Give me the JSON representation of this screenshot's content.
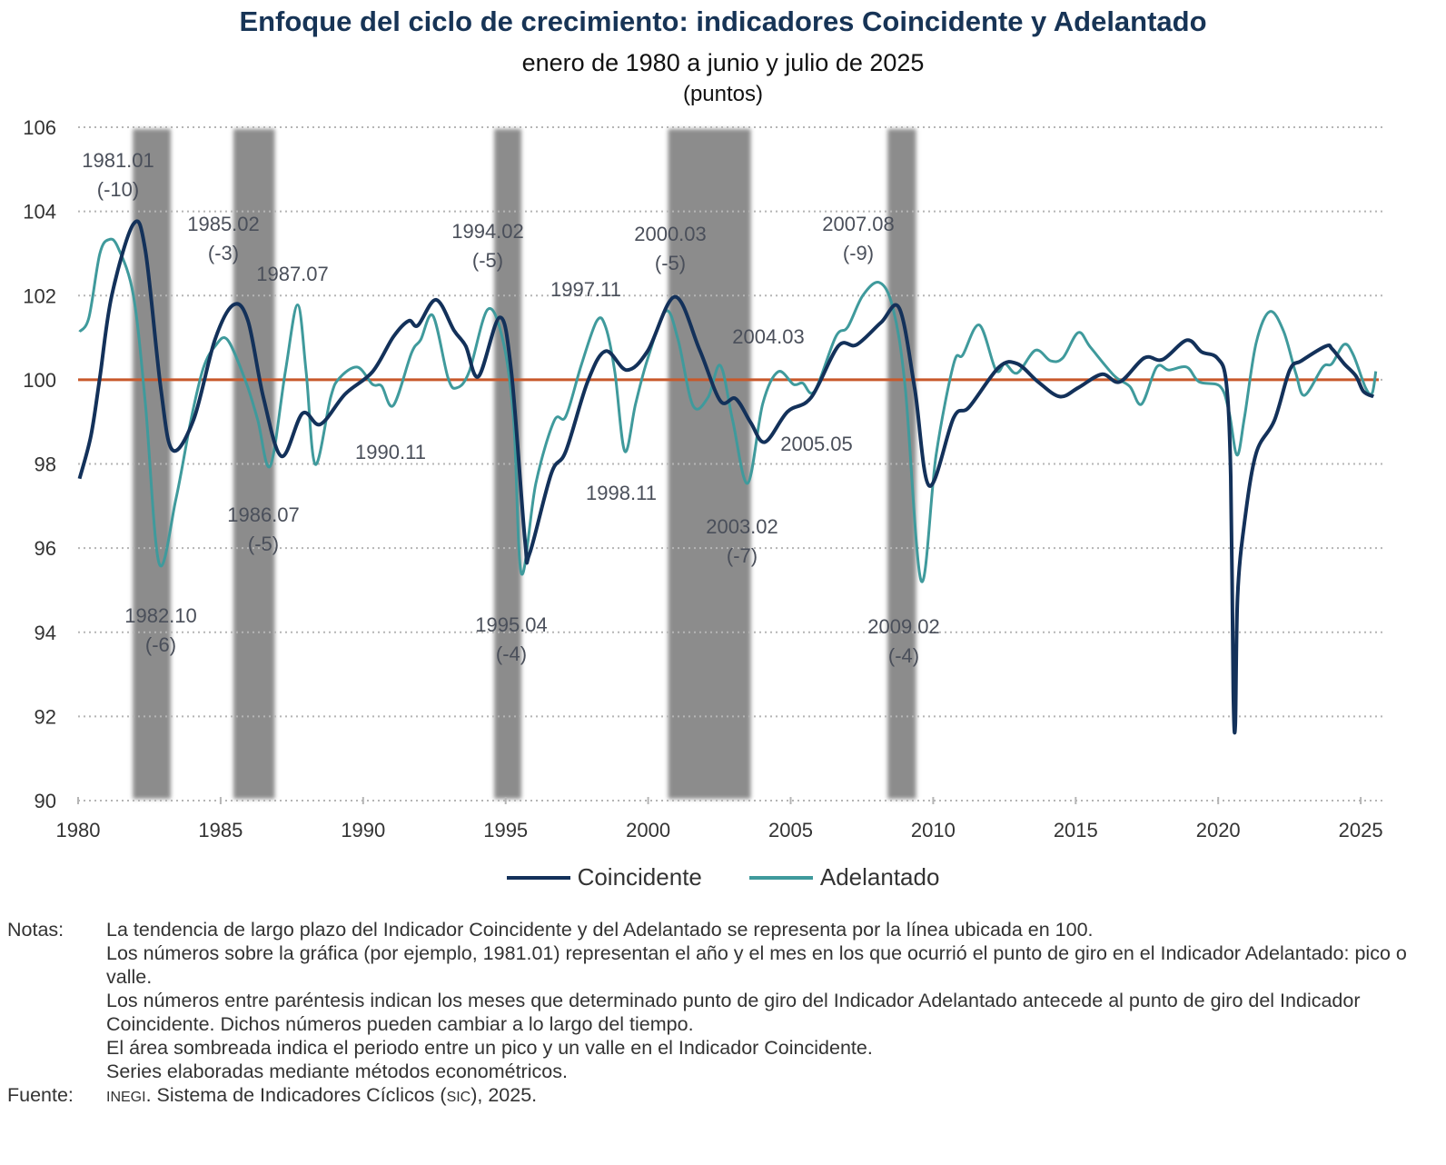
{
  "header": {
    "title": "Enfoque del ciclo de crecimiento: indicadores Coincidente y Adelantado",
    "subtitle": "enero de 1980 a junio y julio de 2025",
    "units": "(puntos)"
  },
  "chart_data": {
    "type": "line",
    "xlim": [
      1980,
      2025.6
    ],
    "ylim": [
      90,
      106
    ],
    "x_ticks": [
      "1980",
      "1985",
      "1990",
      "1995",
      "2000",
      "2005",
      "2010",
      "2015",
      "2020",
      "2025"
    ],
    "y_ticks": [
      "90",
      "92",
      "94",
      "96",
      "98",
      "100",
      "102",
      "104",
      "106"
    ],
    "grid": "horizontal dotted",
    "legend_position": "bottom",
    "reference_line": {
      "value": 100,
      "color": "#c8582a"
    },
    "shaded_periods": [
      [
        1981.92,
        1983.25
      ],
      [
        1985.45,
        1986.9
      ],
      [
        1994.6,
        1995.55
      ],
      [
        2000.7,
        2003.6
      ],
      [
        2008.4,
        2009.4
      ]
    ],
    "shade_color": "#8c8c8c",
    "series": [
      {
        "name": "Coincidente",
        "color": "#13315a",
        "points": [
          [
            1980.05,
            97.65
          ],
          [
            1980.45,
            98.67
          ],
          [
            1980.76,
            100.04
          ],
          [
            1981.18,
            102.0
          ],
          [
            1981.94,
            103.7
          ],
          [
            1982.36,
            103.07
          ],
          [
            1982.9,
            99.8
          ],
          [
            1983.31,
            98.33
          ],
          [
            1984.05,
            99.05
          ],
          [
            1984.8,
            100.95
          ],
          [
            1985.45,
            101.78
          ],
          [
            1985.96,
            101.4
          ],
          [
            1986.5,
            99.58
          ],
          [
            1987.14,
            98.18
          ],
          [
            1987.87,
            99.2
          ],
          [
            1988.5,
            98.94
          ],
          [
            1989.37,
            99.66
          ],
          [
            1990.33,
            100.19
          ],
          [
            1991.06,
            101.02
          ],
          [
            1991.6,
            101.4
          ],
          [
            1991.92,
            101.29
          ],
          [
            1992.56,
            101.9
          ],
          [
            1993.19,
            101.17
          ],
          [
            1993.6,
            100.8
          ],
          [
            1994.05,
            100.08
          ],
          [
            1994.79,
            101.48
          ],
          [
            1995.2,
            100.19
          ],
          [
            1995.68,
            96.17
          ],
          [
            1995.84,
            95.87
          ],
          [
            1996.6,
            97.77
          ],
          [
            1997.11,
            98.3
          ],
          [
            1997.88,
            99.96
          ],
          [
            1998.51,
            100.68
          ],
          [
            1999.25,
            100.23
          ],
          [
            1999.98,
            100.68
          ],
          [
            2000.94,
            101.97
          ],
          [
            2001.8,
            100.72
          ],
          [
            2002.53,
            99.5
          ],
          [
            2003.07,
            99.55
          ],
          [
            2003.6,
            98.98
          ],
          [
            2004.1,
            98.52
          ],
          [
            2004.89,
            99.24
          ],
          [
            2005.72,
            99.58
          ],
          [
            2006.67,
            100.8
          ],
          [
            2007.31,
            100.83
          ],
          [
            2008.17,
            101.36
          ],
          [
            2008.81,
            101.7
          ],
          [
            2009.35,
            99.8
          ],
          [
            2009.86,
            97.48
          ],
          [
            2010.72,
            99.1
          ],
          [
            2011.26,
            99.35
          ],
          [
            2012.31,
            100.3
          ],
          [
            2012.95,
            100.38
          ],
          [
            2013.68,
            99.95
          ],
          [
            2014.44,
            99.6
          ],
          [
            2015.09,
            99.81
          ],
          [
            2015.92,
            100.13
          ],
          [
            2016.55,
            99.95
          ],
          [
            2017.41,
            100.52
          ],
          [
            2018.05,
            100.48
          ],
          [
            2018.9,
            100.94
          ],
          [
            2019.42,
            100.66
          ],
          [
            2019.96,
            100.52
          ],
          [
            2020.28,
            99.95
          ],
          [
            2020.44,
            97.7
          ],
          [
            2020.53,
            92.57
          ],
          [
            2020.6,
            91.8
          ],
          [
            2020.68,
            94.85
          ],
          [
            2020.92,
            96.6
          ],
          [
            2021.33,
            98.25
          ],
          [
            2021.97,
            99.03
          ],
          [
            2022.51,
            100.23
          ],
          [
            2022.92,
            100.45
          ],
          [
            2023.78,
            100.8
          ],
          [
            2024.0,
            100.73
          ],
          [
            2024.42,
            100.38
          ],
          [
            2024.83,
            100.09
          ],
          [
            2025.1,
            99.72
          ],
          [
            2025.45,
            99.6
          ]
        ]
      },
      {
        "name": "Adelantado",
        "color": "#3f9a9c",
        "points": [
          [
            1980.05,
            101.14
          ],
          [
            1980.38,
            101.48
          ],
          [
            1980.76,
            102.99
          ],
          [
            1981.08,
            103.33
          ],
          [
            1981.4,
            103.14
          ],
          [
            1981.94,
            102.0
          ],
          [
            1982.36,
            99.43
          ],
          [
            1982.84,
            95.64
          ],
          [
            1983.43,
            97.16
          ],
          [
            1983.96,
            99.05
          ],
          [
            1984.39,
            100.27
          ],
          [
            1984.81,
            100.8
          ],
          [
            1985.24,
            100.95
          ],
          [
            1985.88,
            99.96
          ],
          [
            1986.3,
            99.05
          ],
          [
            1986.74,
            97.95
          ],
          [
            1987.27,
            100.19
          ],
          [
            1987.7,
            101.78
          ],
          [
            1988.0,
            100.19
          ],
          [
            1988.32,
            97.99
          ],
          [
            1988.86,
            99.58
          ],
          [
            1989.17,
            100.04
          ],
          [
            1989.8,
            100.3
          ],
          [
            1990.33,
            99.89
          ],
          [
            1990.65,
            99.85
          ],
          [
            1991.06,
            99.39
          ],
          [
            1991.7,
            100.64
          ],
          [
            1992.02,
            100.95
          ],
          [
            1992.45,
            101.52
          ],
          [
            1992.98,
            100.04
          ],
          [
            1993.29,
            99.81
          ],
          [
            1993.72,
            100.19
          ],
          [
            1994.37,
            101.67
          ],
          [
            1994.9,
            100.95
          ],
          [
            1995.28,
            99.05
          ],
          [
            1995.55,
            95.4
          ],
          [
            1996.06,
            97.54
          ],
          [
            1996.7,
            99.02
          ],
          [
            1997.11,
            99.13
          ],
          [
            1997.65,
            100.34
          ],
          [
            1998.2,
            101.4
          ],
          [
            1998.51,
            101.25
          ],
          [
            1998.83,
            100.19
          ],
          [
            1999.18,
            98.3
          ],
          [
            1999.56,
            99.43
          ],
          [
            1999.98,
            100.49
          ],
          [
            2000.62,
            101.63
          ],
          [
            2001.05,
            100.95
          ],
          [
            2001.57,
            99.39
          ],
          [
            2002.1,
            99.58
          ],
          [
            2002.53,
            100.34
          ],
          [
            2002.96,
            99.05
          ],
          [
            2003.49,
            97.54
          ],
          [
            2004.02,
            99.43
          ],
          [
            2004.56,
            100.19
          ],
          [
            2005.1,
            99.89
          ],
          [
            2005.42,
            99.92
          ],
          [
            2005.84,
            99.73
          ],
          [
            2006.58,
            101.02
          ],
          [
            2007.0,
            101.25
          ],
          [
            2007.53,
            102.0
          ],
          [
            2008.11,
            102.31
          ],
          [
            2008.59,
            101.7
          ],
          [
            2009.02,
            99.81
          ],
          [
            2009.58,
            95.22
          ],
          [
            2010.1,
            98.2
          ],
          [
            2010.72,
            100.38
          ],
          [
            2011.04,
            100.59
          ],
          [
            2011.62,
            101.3
          ],
          [
            2012.2,
            100.23
          ],
          [
            2012.52,
            100.38
          ],
          [
            2012.95,
            100.16
          ],
          [
            2013.59,
            100.7
          ],
          [
            2014.12,
            100.45
          ],
          [
            2014.55,
            100.52
          ],
          [
            2015.09,
            101.12
          ],
          [
            2015.52,
            100.77
          ],
          [
            2016.36,
            100.09
          ],
          [
            2016.9,
            99.84
          ],
          [
            2017.31,
            99.42
          ],
          [
            2017.84,
            100.3
          ],
          [
            2018.27,
            100.23
          ],
          [
            2018.9,
            100.3
          ],
          [
            2019.33,
            99.95
          ],
          [
            2020.07,
            99.84
          ],
          [
            2020.38,
            99.24
          ],
          [
            2020.66,
            98.21
          ],
          [
            2020.92,
            99.1
          ],
          [
            2021.33,
            100.87
          ],
          [
            2021.81,
            101.62
          ],
          [
            2022.29,
            101.16
          ],
          [
            2022.72,
            100.16
          ],
          [
            2023.03,
            99.63
          ],
          [
            2023.67,
            100.3
          ],
          [
            2023.99,
            100.38
          ],
          [
            2024.42,
            100.84
          ],
          [
            2024.74,
            100.59
          ],
          [
            2025.17,
            99.81
          ],
          [
            2025.4,
            99.68
          ],
          [
            2025.53,
            100.2
          ]
        ]
      }
    ],
    "annotations": [
      {
        "date": "1981.01",
        "lead": "(-10)"
      },
      {
        "date": "1985.02",
        "lead": "(-3)"
      },
      {
        "date": "1987.07",
        "lead": ""
      },
      {
        "date": "1990.11",
        "lead": ""
      },
      {
        "date": "1994.02",
        "lead": "(-5)"
      },
      {
        "date": "1997.11",
        "lead": ""
      },
      {
        "date": "2000.03",
        "lead": "(-5)"
      },
      {
        "date": "1998.11",
        "lead": ""
      },
      {
        "date": "2003.02",
        "lead": "(-7)"
      },
      {
        "date": "2004.03",
        "lead": ""
      },
      {
        "date": "2005.05",
        "lead": ""
      },
      {
        "date": "2007.08",
        "lead": "(-9)"
      },
      {
        "date": "1982.10",
        "lead": "(-6)"
      },
      {
        "date": "1986.07",
        "lead": "(-5)"
      },
      {
        "date": "1995.04",
        "lead": "(-4)"
      },
      {
        "date": "2009.02",
        "lead": "(-4)"
      }
    ]
  },
  "legend": {
    "coincidente": "Coincidente",
    "adelantado": "Adelantado"
  },
  "notes": {
    "label": "Notas:",
    "lines": [
      "La tendencia de largo plazo del Indicador Coincidente y del Adelantado se representa por la línea ubicada en 100.",
      "Los números sobre la gráfica (por ejemplo, 1981.01) representan el año y el mes en los que ocurrió el punto de giro en el Indicador Adelantado: pico o valle.",
      "Los números entre paréntesis indican los meses que determinado punto de giro del Indicador Adelantado antecede al punto de giro del Indicador Coincidente. Dichos números pueden cambiar a lo largo del tiempo.",
      "El área sombreada indica el periodo entre un pico y un valle en el Indicador Coincidente.",
      "Series elaboradas mediante métodos econométricos."
    ]
  },
  "source": {
    "label": "Fuente:",
    "org": "INEGI",
    "text1": ". Sistema de Indicadores Cíclicos (",
    "abbr": "SIC",
    "text2": "), 2025."
  }
}
